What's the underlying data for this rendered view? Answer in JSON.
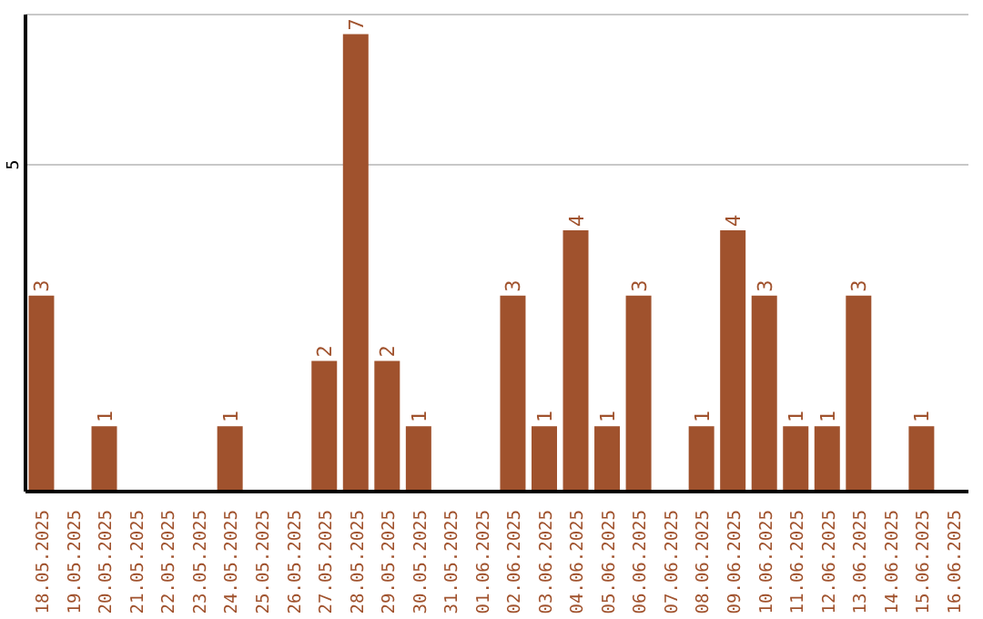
{
  "chart_data": {
    "type": "bar",
    "categories": [
      "18.05.2025",
      "19.05.2025",
      "20.05.2025",
      "21.05.2025",
      "22.05.2025",
      "23.05.2025",
      "24.05.2025",
      "25.05.2025",
      "26.05.2025",
      "27.05.2025",
      "28.05.2025",
      "29.05.2025",
      "30.05.2025",
      "31.05.2025",
      "01.06.2025",
      "02.06.2025",
      "03.06.2025",
      "04.06.2025",
      "05.06.2025",
      "06.06.2025",
      "07.06.2025",
      "08.06.2025",
      "09.06.2025",
      "10.06.2025",
      "11.06.2025",
      "12.06.2025",
      "13.06.2025",
      "14.06.2025",
      "15.06.2025",
      "16.06.2025"
    ],
    "values": [
      3,
      0,
      1,
      0,
      0,
      0,
      1,
      0,
      0,
      2,
      7,
      2,
      1,
      0,
      0,
      3,
      1,
      4,
      1,
      3,
      0,
      1,
      4,
      3,
      1,
      1,
      3,
      0,
      1,
      0
    ],
    "value_labels": [
      "3",
      null,
      "1",
      null,
      null,
      null,
      "1",
      null,
      null,
      "2",
      "7",
      "2",
      "1",
      null,
      null,
      "3",
      "1",
      "4",
      "1",
      "3",
      null,
      "1",
      "4",
      "3",
      "1",
      "1",
      "3",
      null,
      "1",
      null
    ],
    "color": "#a0522d",
    "ylim": [
      0,
      7.3
    ],
    "yticks": [
      5
    ],
    "grid": "y"
  }
}
